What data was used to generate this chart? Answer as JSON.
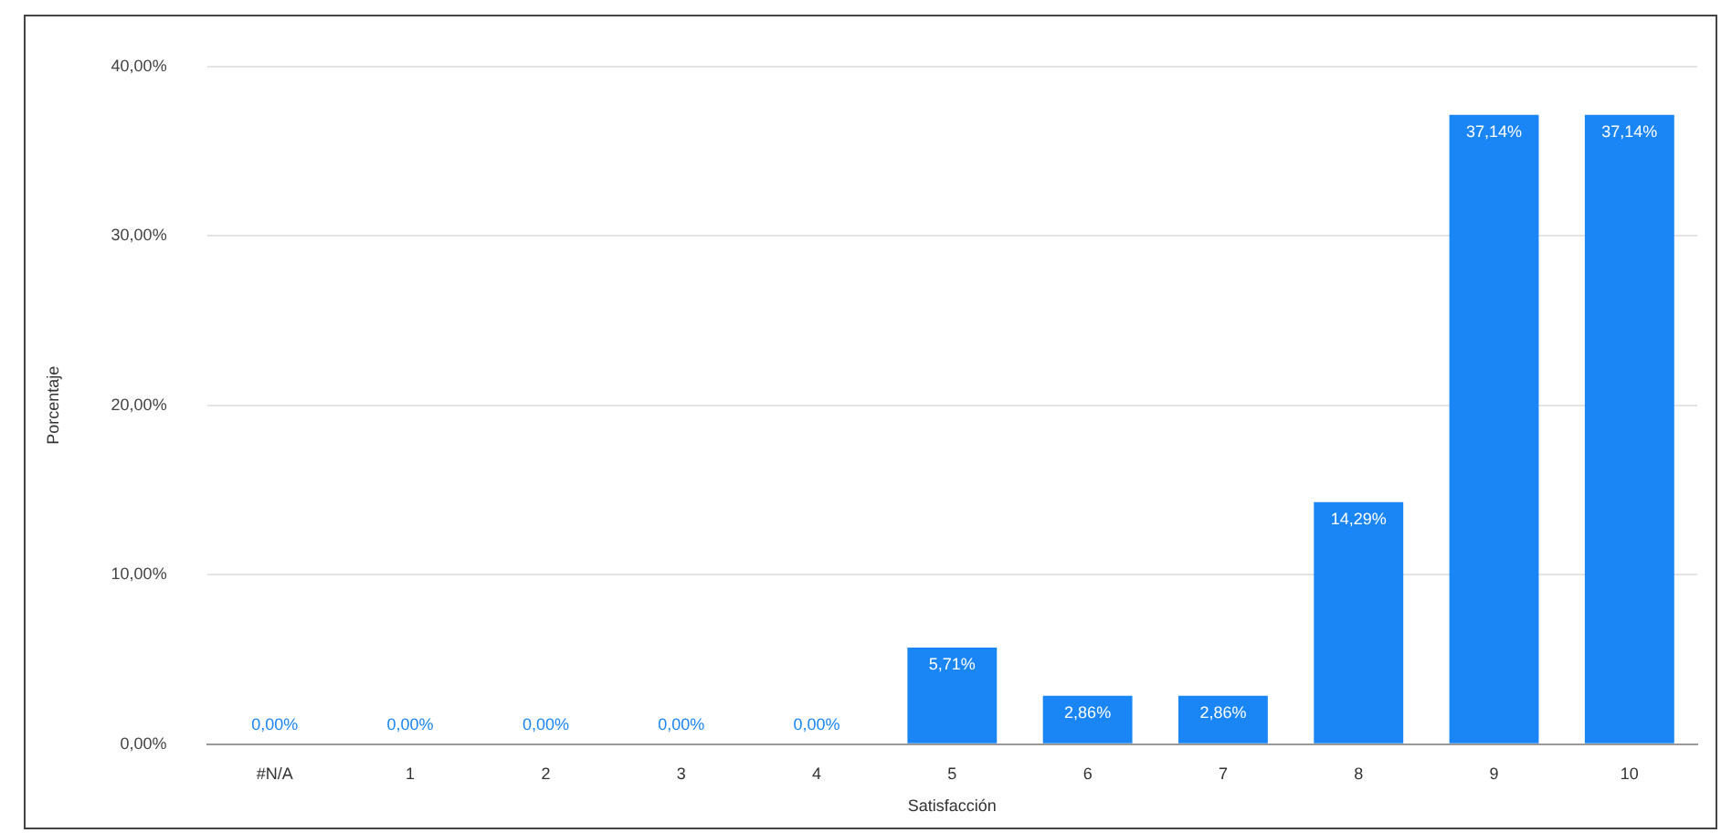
{
  "chart_data": {
    "type": "bar",
    "xlabel": "Satisfacción",
    "ylabel": "Porcentaje",
    "categories": [
      "#N/A",
      "1",
      "2",
      "3",
      "4",
      "5",
      "6",
      "7",
      "8",
      "9",
      "10"
    ],
    "values": [
      0,
      0,
      0,
      0,
      0,
      5.71,
      2.86,
      2.86,
      14.29,
      37.14,
      37.14
    ],
    "value_labels": [
      "0,00%",
      "0,00%",
      "0,00%",
      "0,00%",
      "0,00%",
      "5,71%",
      "2,86%",
      "2,86%",
      "14,29%",
      "37,14%",
      "37,14%"
    ],
    "color": "#1a85f5",
    "ylim": [
      0,
      40
    ],
    "yticks": [
      {
        "value": 0,
        "label": "0,00%"
      },
      {
        "value": 10,
        "label": "10,00%"
      },
      {
        "value": 20,
        "label": "20,00%"
      },
      {
        "value": 30,
        "label": "30,00%"
      },
      {
        "value": 40,
        "label": "40,00%"
      }
    ],
    "grid": "y",
    "legend": false
  }
}
